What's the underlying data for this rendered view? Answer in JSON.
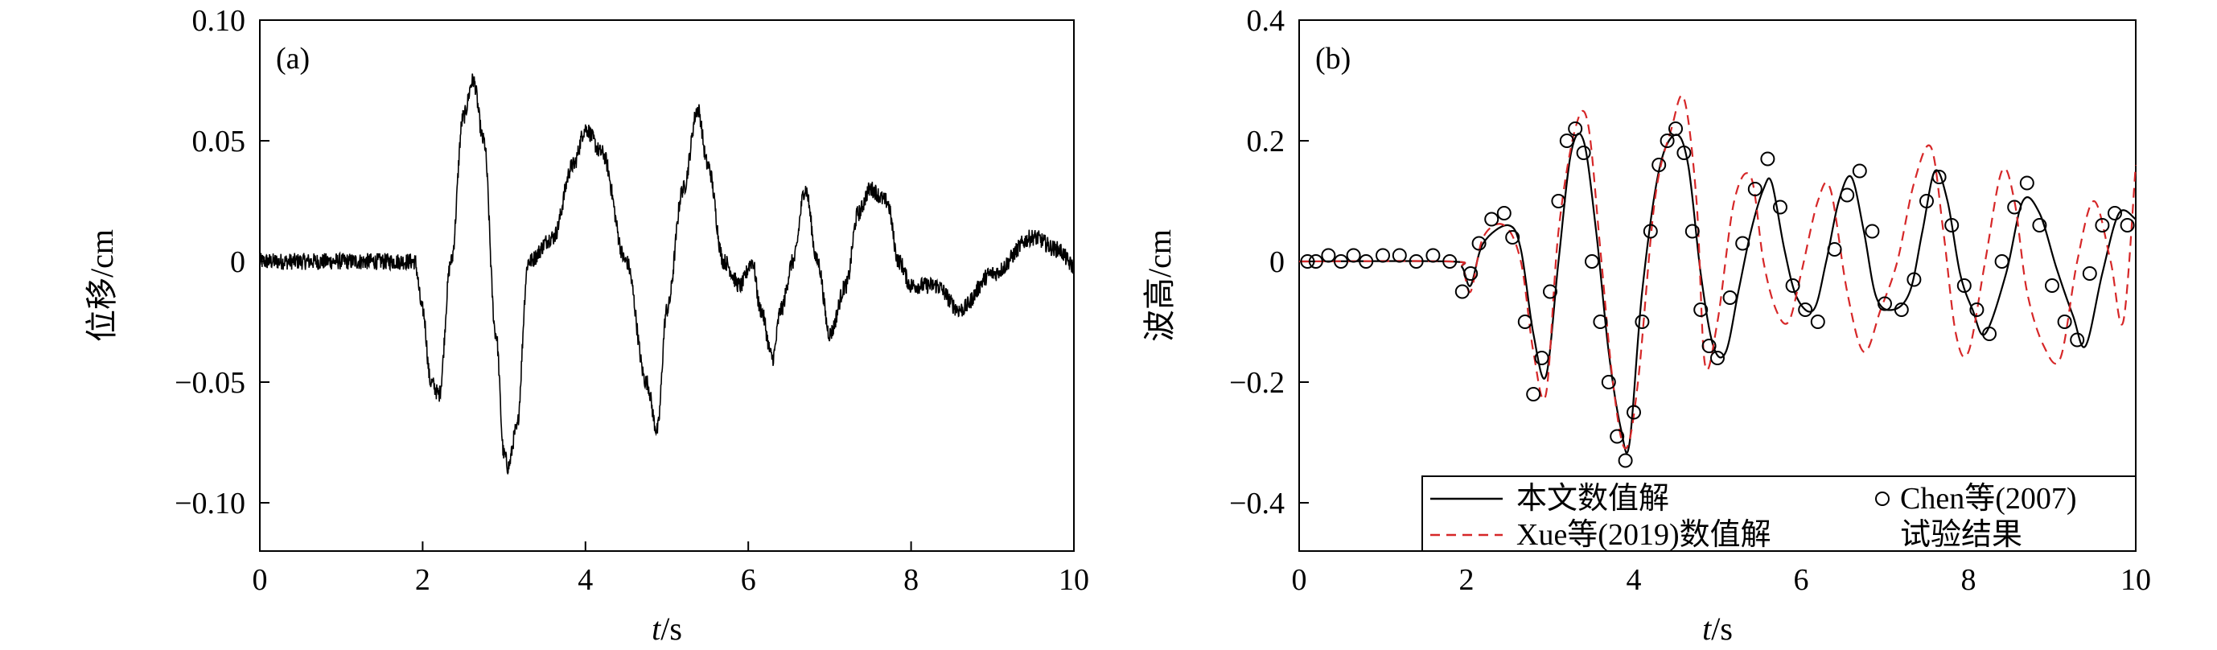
{
  "chart_data": [
    {
      "type": "line",
      "panel_label": "(a)",
      "xlabel_var": "t",
      "xlabel_unit": "/s",
      "ylabel": "位移/cm",
      "xlim": [
        0,
        10
      ],
      "ylim": [
        -0.12,
        0.1
      ],
      "xticks": [
        0,
        2,
        4,
        6,
        8,
        10
      ],
      "xtick_labels": [
        "0",
        "2",
        "4",
        "6",
        "8",
        "10"
      ],
      "yticks": [
        -0.1,
        -0.05,
        0,
        0.05,
        0.1
      ],
      "ytick_labels": [
        "−0.10",
        "−0.05",
        "0",
        "0.05",
        "0.10"
      ],
      "noise_amplitude": 0.0035,
      "series": [
        {
          "color": "#000000",
          "style": "solid",
          "x": [
            0,
            1.9,
            2.0,
            2.1,
            2.2,
            2.35,
            2.5,
            2.62,
            2.75,
            2.9,
            3.0,
            3.05,
            3.15,
            3.3,
            3.6,
            3.85,
            4.0,
            4.2,
            4.5,
            4.75,
            4.88,
            5.0,
            5.2,
            5.38,
            5.5,
            5.7,
            5.9,
            6.05,
            6.15,
            6.3,
            6.4,
            6.55,
            6.7,
            6.85,
            7.0,
            7.2,
            7.35,
            7.5,
            7.7,
            7.85,
            8.0,
            8.3,
            8.6,
            9.0,
            9.5,
            9.8,
            10.0
          ],
          "y": [
            0,
            0,
            -0.02,
            -0.05,
            -0.055,
            0.0,
            0.06,
            0.075,
            0.05,
            -0.03,
            -0.08,
            -0.085,
            -0.07,
            0.0,
            0.01,
            0.04,
            0.055,
            0.045,
            0.0,
            -0.05,
            -0.07,
            -0.02,
            0.03,
            0.063,
            0.04,
            0.0,
            -0.01,
            0.0,
            -0.02,
            -0.04,
            -0.02,
            0.0,
            0.03,
            0.0,
            -0.03,
            -0.01,
            0.02,
            0.03,
            0.025,
            0.0,
            -0.01,
            -0.01,
            -0.02,
            -0.005,
            0.01,
            0.005,
            -0.002
          ]
        }
      ]
    },
    {
      "type": "line",
      "panel_label": "(b)",
      "xlabel_var": "t",
      "xlabel_unit": "/s",
      "ylabel": "波高/cm",
      "xlim": [
        0,
        10
      ],
      "ylim": [
        -0.48,
        0.4
      ],
      "xticks": [
        0,
        2,
        4,
        6,
        8,
        10
      ],
      "xtick_labels": [
        "0",
        "2",
        "4",
        "6",
        "8",
        "10"
      ],
      "yticks": [
        -0.4,
        -0.2,
        0,
        0.2,
        0.4
      ],
      "ytick_labels": [
        "−0.4",
        "−0.2",
        "0",
        "0.2",
        "0.4"
      ],
      "legend": {
        "items": [
          {
            "label": "本文数值解",
            "style": "solid"
          },
          {
            "label": "Xue等(2019)数值解",
            "style": "dashed"
          },
          {
            "label": "Chen等(2007)",
            "label_line2": "试验结果",
            "style": "circle"
          }
        ]
      },
      "series": [
        {
          "name": "本文数值解",
          "color": "#000000",
          "style": "solid",
          "x": [
            0,
            1.8,
            1.95,
            2.05,
            2.2,
            2.5,
            2.65,
            2.8,
            2.95,
            3.1,
            3.25,
            3.4,
            3.55,
            3.7,
            3.85,
            3.95,
            4.1,
            4.3,
            4.5,
            4.65,
            4.8,
            4.95,
            5.1,
            5.25,
            5.4,
            5.55,
            5.65,
            5.8,
            5.95,
            6.15,
            6.3,
            6.45,
            6.6,
            6.75,
            6.9,
            7.1,
            7.3,
            7.45,
            7.6,
            7.75,
            7.9,
            8.05,
            8.2,
            8.45,
            8.65,
            8.85,
            9.05,
            9.25,
            9.4,
            9.6,
            9.8,
            10.0
          ],
          "y": [
            0,
            0,
            -0.01,
            -0.04,
            0.03,
            0.06,
            0.02,
            -0.12,
            -0.19,
            0.0,
            0.18,
            0.2,
            0.05,
            -0.15,
            -0.28,
            -0.3,
            -0.05,
            0.15,
            0.21,
            0.16,
            -0.02,
            -0.14,
            -0.15,
            -0.05,
            0.05,
            0.12,
            0.13,
            0.02,
            -0.06,
            -0.08,
            0.0,
            0.1,
            0.14,
            0.05,
            -0.06,
            -0.08,
            -0.05,
            0.05,
            0.15,
            0.1,
            -0.02,
            -0.08,
            -0.12,
            -0.02,
            0.1,
            0.08,
            -0.01,
            -0.09,
            -0.14,
            -0.02,
            0.08,
            0.07
          ]
        },
        {
          "name": "Xue等(2019)数值解",
          "color": "#d62728",
          "style": "dashed",
          "x": [
            0,
            1.8,
            1.95,
            2.05,
            2.2,
            2.45,
            2.65,
            2.8,
            2.95,
            3.1,
            3.3,
            3.45,
            3.6,
            3.75,
            3.9,
            4.05,
            4.25,
            4.45,
            4.6,
            4.75,
            4.85,
            5.0,
            5.2,
            5.4,
            5.55,
            5.7,
            5.85,
            6.0,
            6.2,
            6.35,
            6.55,
            6.75,
            6.95,
            7.15,
            7.35,
            7.55,
            7.7,
            7.85,
            8.0,
            8.2,
            8.4,
            8.55,
            8.7,
            8.9,
            9.1,
            9.3,
            9.5,
            9.7,
            9.85,
            10.0
          ],
          "y": [
            0,
            0,
            -0.01,
            -0.05,
            0.04,
            0.06,
            0.0,
            -0.15,
            -0.22,
            0.05,
            0.22,
            0.23,
            0.02,
            -0.2,
            -0.31,
            -0.2,
            0.1,
            0.22,
            0.27,
            0.1,
            -0.17,
            -0.1,
            0.1,
            0.14,
            0.0,
            -0.08,
            -0.1,
            -0.02,
            0.1,
            0.12,
            -0.05,
            -0.15,
            -0.08,
            0.0,
            0.13,
            0.19,
            0.05,
            -0.12,
            -0.15,
            0.0,
            0.15,
            0.1,
            -0.05,
            -0.14,
            -0.16,
            0.0,
            0.1,
            0.0,
            -0.1,
            0.16
          ]
        },
        {
          "name": "Chen等(2007)试验结果",
          "color": "#000000",
          "style": "circle",
          "x": [
            0.1,
            0.2,
            0.35,
            0.5,
            0.65,
            0.8,
            1.0,
            1.2,
            1.4,
            1.6,
            1.8,
            1.95,
            2.05,
            2.15,
            2.3,
            2.45,
            2.55,
            2.7,
            2.8,
            2.9,
            3.0,
            3.1,
            3.2,
            3.3,
            3.4,
            3.5,
            3.6,
            3.7,
            3.8,
            3.9,
            4.0,
            4.1,
            4.2,
            4.3,
            4.4,
            4.5,
            4.6,
            4.7,
            4.8,
            4.9,
            5.0,
            5.15,
            5.3,
            5.45,
            5.6,
            5.75,
            5.9,
            6.05,
            6.2,
            6.4,
            6.55,
            6.7,
            6.85,
            7.0,
            7.2,
            7.35,
            7.5,
            7.65,
            7.8,
            7.95,
            8.1,
            8.25,
            8.4,
            8.55,
            8.7,
            8.85,
            9.0,
            9.15,
            9.3,
            9.45,
            9.6,
            9.75,
            9.9
          ],
          "y": [
            0.0,
            0.0,
            0.01,
            0.0,
            0.01,
            0.0,
            0.01,
            0.01,
            0.0,
            0.01,
            0.0,
            -0.05,
            -0.02,
            0.03,
            0.07,
            0.08,
            0.04,
            -0.1,
            -0.22,
            -0.16,
            -0.05,
            0.1,
            0.2,
            0.22,
            0.18,
            0.0,
            -0.1,
            -0.2,
            -0.29,
            -0.33,
            -0.25,
            -0.1,
            0.05,
            0.16,
            0.2,
            0.22,
            0.18,
            0.05,
            -0.08,
            -0.14,
            -0.16,
            -0.06,
            0.03,
            0.12,
            0.17,
            0.09,
            -0.04,
            -0.08,
            -0.1,
            0.02,
            0.11,
            0.15,
            0.05,
            -0.07,
            -0.08,
            -0.03,
            0.1,
            0.14,
            0.06,
            -0.04,
            -0.08,
            -0.12,
            0.0,
            0.09,
            0.13,
            0.06,
            -0.04,
            -0.1,
            -0.13,
            -0.02,
            0.06,
            0.08,
            0.06
          ]
        }
      ]
    }
  ]
}
